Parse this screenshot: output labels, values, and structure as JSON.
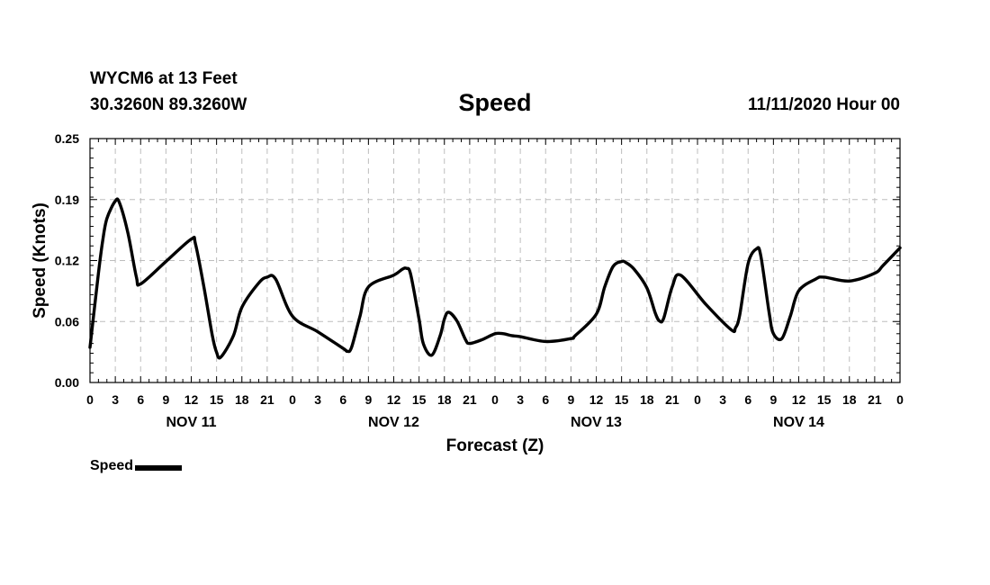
{
  "header": {
    "station": "WYCM6 at 13 Feet",
    "coords": "30.3260N 89.3260W",
    "title": "Speed",
    "issued": "11/11/2020 Hour 00"
  },
  "legend": {
    "label": "Speed",
    "color": "#000000"
  },
  "chart_data": {
    "type": "line",
    "title": "Speed",
    "xlabel": "Forecast (Z)",
    "ylabel": "Speed (Knots)",
    "ylim": [
      0,
      0.25
    ],
    "xlim": [
      0,
      96
    ],
    "grid": true,
    "legend_position": "bottom-left",
    "y_ticks": [
      "0.00",
      "0.06",
      "0.12",
      "0.19",
      "0.25"
    ],
    "y_tick_values": [
      0,
      0.0625,
      0.125,
      0.1875,
      0.25
    ],
    "x_tick_labels": [
      "0",
      "3",
      "6",
      "9",
      "12",
      "15",
      "18",
      "21",
      "0",
      "3",
      "6",
      "9",
      "12",
      "15",
      "18",
      "21",
      "0",
      "3",
      "6",
      "9",
      "12",
      "15",
      "18",
      "21",
      "0",
      "3",
      "6",
      "9",
      "12",
      "15",
      "18",
      "21",
      "0"
    ],
    "day_labels": [
      {
        "label": "NOV 11",
        "hour": 12
      },
      {
        "label": "NOV 12",
        "hour": 36
      },
      {
        "label": "NOV 13",
        "hour": 60
      },
      {
        "label": "NOV 14",
        "hour": 84
      }
    ],
    "series": [
      {
        "name": "Speed",
        "color": "#000000",
        "x": [
          0,
          1,
          1.5,
          2,
          3,
          3.5,
          4.5,
          5.5,
          6,
          9,
          12,
          12.5,
          13.5,
          14.5,
          15,
          15.5,
          17,
          18,
          20,
          21,
          22,
          24,
          27,
          30,
          30.5,
          31,
          32,
          33,
          36,
          37,
          37.5,
          38,
          39,
          39.5,
          40.5,
          41.5,
          42,
          42.5,
          43.5,
          44.5,
          45,
          46.5,
          48,
          49,
          50,
          51,
          54,
          57,
          57.5,
          60,
          61,
          62,
          63,
          63.5,
          64.5,
          66,
          67,
          67.5,
          68,
          69,
          70,
          73,
          76,
          76.5,
          77,
          78,
          79,
          79.5,
          80.5,
          81,
          82,
          83,
          84,
          86,
          87,
          90,
          93,
          94,
          96
        ],
        "y": [
          0.036,
          0.112,
          0.145,
          0.168,
          0.186,
          0.184,
          0.153,
          0.108,
          0.101,
          0.124,
          0.147,
          0.142,
          0.098,
          0.048,
          0.031,
          0.026,
          0.048,
          0.077,
          0.102,
          0.108,
          0.106,
          0.068,
          0.052,
          0.035,
          0.032,
          0.036,
          0.068,
          0.098,
          0.11,
          0.116,
          0.117,
          0.111,
          0.065,
          0.04,
          0.028,
          0.048,
          0.065,
          0.072,
          0.063,
          0.044,
          0.04,
          0.044,
          0.05,
          0.05,
          0.048,
          0.047,
          0.042,
          0.045,
          0.048,
          0.07,
          0.098,
          0.119,
          0.124,
          0.123,
          0.116,
          0.097,
          0.071,
          0.063,
          0.066,
          0.098,
          0.11,
          0.08,
          0.054,
          0.056,
          0.069,
          0.122,
          0.137,
          0.13,
          0.071,
          0.05,
          0.045,
          0.068,
          0.094,
          0.106,
          0.108,
          0.104,
          0.112,
          0.12,
          0.138
        ]
      }
    ]
  }
}
